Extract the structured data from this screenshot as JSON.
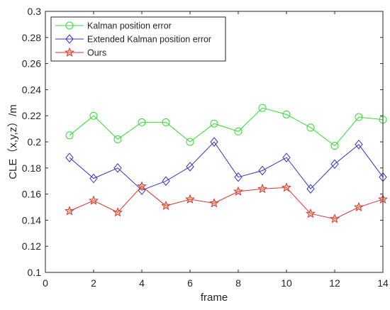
{
  "chart_data": {
    "type": "line",
    "title": "",
    "xlabel": "frame",
    "ylabel": "CLE（x,y,z）/m",
    "xlim": [
      0,
      14
    ],
    "ylim": [
      0.1,
      0.3
    ],
    "xticks": [
      0,
      2,
      4,
      6,
      8,
      10,
      12,
      14
    ],
    "yticks": [
      0.1,
      0.12,
      0.14,
      0.16,
      0.18,
      0.2,
      0.22,
      0.24,
      0.26,
      0.28,
      0.3
    ],
    "xtick_labels": [
      "0",
      "2",
      "4",
      "6",
      "8",
      "10",
      "12",
      "14"
    ],
    "ytick_labels": [
      "0.1",
      "0.12",
      "0.14",
      "0.16",
      "0.18",
      "0.2",
      "0.22",
      "0.24",
      "0.26",
      "0.28",
      "0.3"
    ],
    "legend_position": "top-left",
    "grid": false,
    "x": [
      1,
      2,
      3,
      4,
      5,
      6,
      7,
      8,
      9,
      10,
      11,
      12,
      13,
      14
    ],
    "series": [
      {
        "name": "Kalman position error",
        "color": "#33dd33",
        "marker": "circle",
        "values": [
          0.205,
          0.22,
          0.202,
          0.215,
          0.215,
          0.2,
          0.214,
          0.208,
          0.226,
          0.221,
          0.211,
          0.197,
          0.219,
          0.217
        ]
      },
      {
        "name": "Extended Kalman position error",
        "color": "#3333cc",
        "marker": "diamond",
        "values": [
          0.188,
          0.172,
          0.18,
          0.163,
          0.17,
          0.181,
          0.2,
          0.173,
          0.178,
          0.188,
          0.164,
          0.183,
          0.198,
          0.173
        ]
      },
      {
        "name": "Ours",
        "color": "#dd3333",
        "marker": "star",
        "values": [
          0.147,
          0.155,
          0.146,
          0.166,
          0.151,
          0.156,
          0.153,
          0.162,
          0.164,
          0.165,
          0.145,
          0.141,
          0.15,
          0.156
        ]
      }
    ]
  }
}
